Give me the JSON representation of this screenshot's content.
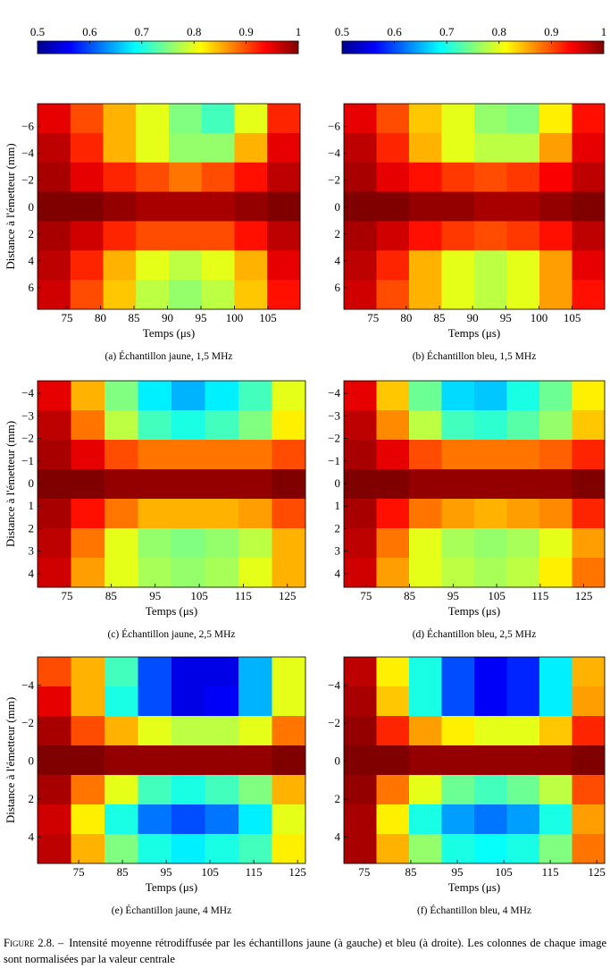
{
  "chart_data": [
    {
      "type": "colorbar",
      "colormap": "jet",
      "xlim": [
        0.5,
        1
      ],
      "xticks": [
        0.5,
        0.6,
        0.7,
        0.8,
        0.9,
        1
      ]
    },
    {
      "type": "colorbar",
      "colormap": "jet",
      "xlim": [
        0.5,
        1
      ],
      "xticks": [
        0.5,
        0.6,
        0.7,
        0.8,
        0.9,
        1
      ]
    },
    {
      "type": "heatmap",
      "xlabel": "Temps (μs)",
      "ylabel": "Distance à l'émetteur (mm)",
      "caption": "(a) Échantillon jaune, 1,5 MHz",
      "xlim": [
        70.6,
        109.8
      ],
      "xticks": [
        75,
        80,
        85,
        90,
        95,
        100,
        105
      ],
      "ylim": [
        -7.7,
        7.6
      ],
      "yticks": [
        {
          "value": -6,
          "label": "−6"
        },
        {
          "value": -4,
          "label": "−4"
        },
        {
          "value": -2,
          "label": "−2"
        },
        0,
        2,
        4,
        6
      ],
      "values": [
        [
          0.95,
          0.9,
          0.85,
          0.8,
          0.75,
          0.72,
          0.8,
          0.92
        ],
        [
          0.97,
          0.92,
          0.85,
          0.8,
          0.76,
          0.76,
          0.85,
          0.95
        ],
        [
          0.98,
          0.95,
          0.92,
          0.9,
          0.88,
          0.9,
          0.93,
          0.97
        ],
        [
          1,
          1,
          0.99,
          0.98,
          0.98,
          0.98,
          0.99,
          1
        ],
        [
          0.98,
          0.96,
          0.92,
          0.9,
          0.9,
          0.9,
          0.93,
          0.97
        ],
        [
          0.97,
          0.92,
          0.85,
          0.8,
          0.78,
          0.8,
          0.85,
          0.95
        ],
        [
          0.96,
          0.9,
          0.84,
          0.78,
          0.76,
          0.78,
          0.84,
          0.93
        ]
      ]
    },
    {
      "type": "heatmap",
      "xlabel": "Temps (μs)",
      "caption": "(b) Échantillon bleu, 1,5 MHz",
      "xlim": [
        70.6,
        109.9
      ],
      "xticks": [
        75,
        80,
        85,
        90,
        95,
        100,
        105
      ],
      "ylim": [
        -7.7,
        7.6
      ],
      "yticks": [
        {
          "value": -6,
          "label": "−6"
        },
        {
          "value": -4,
          "label": "−4"
        },
        {
          "value": -2,
          "label": "−2"
        },
        0,
        2,
        4,
        6
      ],
      "values": [
        [
          0.95,
          0.9,
          0.84,
          0.8,
          0.76,
          0.75,
          0.82,
          0.93
        ],
        [
          0.97,
          0.92,
          0.85,
          0.8,
          0.78,
          0.78,
          0.86,
          0.95
        ],
        [
          0.98,
          0.95,
          0.93,
          0.91,
          0.9,
          0.91,
          0.94,
          0.97
        ],
        [
          1,
          1,
          0.99,
          0.99,
          0.98,
          0.98,
          0.99,
          1
        ],
        [
          0.98,
          0.96,
          0.93,
          0.91,
          0.9,
          0.91,
          0.93,
          0.97
        ],
        [
          0.97,
          0.92,
          0.85,
          0.8,
          0.78,
          0.8,
          0.86,
          0.95
        ],
        [
          0.96,
          0.9,
          0.85,
          0.8,
          0.78,
          0.8,
          0.86,
          0.93
        ]
      ]
    },
    {
      "type": "heatmap",
      "xlabel": "Temps (μs)",
      "ylabel": "Distance à l'émetteur (mm)",
      "caption": "(c) Échantillon jaune, 2,5 MHz",
      "xlim": [
        68.3,
        129.1
      ],
      "xticks": [
        75,
        85,
        95,
        105,
        115,
        125
      ],
      "ylim": [
        -4.56,
        4.6
      ],
      "yticks": [
        {
          "value": -4,
          "label": "−4"
        },
        {
          "value": -3,
          "label": "−3"
        },
        {
          "value": -2,
          "label": "−2"
        },
        {
          "value": -1,
          "label": "−1"
        },
        0,
        1,
        2,
        3,
        4
      ],
      "values": [
        [
          0.95,
          0.85,
          0.75,
          0.68,
          0.65,
          0.68,
          0.72,
          0.8
        ],
        [
          0.97,
          0.88,
          0.78,
          0.72,
          0.7,
          0.72,
          0.75,
          0.82
        ],
        [
          0.98,
          0.95,
          0.9,
          0.88,
          0.88,
          0.88,
          0.88,
          0.9
        ],
        [
          1,
          1,
          0.99,
          0.99,
          0.99,
          0.99,
          0.99,
          1
        ],
        [
          0.98,
          0.93,
          0.88,
          0.85,
          0.85,
          0.85,
          0.86,
          0.9
        ],
        [
          0.97,
          0.88,
          0.8,
          0.76,
          0.75,
          0.76,
          0.78,
          0.85
        ],
        [
          0.96,
          0.86,
          0.8,
          0.77,
          0.76,
          0.77,
          0.8,
          0.85
        ]
      ]
    },
    {
      "type": "heatmap",
      "xlabel": "Temps (μs)",
      "caption": "(d) Échantillon bleu, 2,5 MHz",
      "xlim": [
        69.9,
        129.8
      ],
      "xticks": [
        75,
        85,
        95,
        105,
        115,
        125
      ],
      "ylim": [
        -4.56,
        4.6
      ],
      "yticks": [
        {
          "value": -4,
          "label": "−4"
        },
        {
          "value": -3,
          "label": "−3"
        },
        {
          "value": -2,
          "label": "−2"
        },
        {
          "value": -1,
          "label": "−1"
        },
        0,
        1,
        2,
        3,
        4
      ],
      "values": [
        [
          0.95,
          0.84,
          0.74,
          0.67,
          0.66,
          0.7,
          0.74,
          0.82
        ],
        [
          0.97,
          0.87,
          0.78,
          0.72,
          0.71,
          0.73,
          0.76,
          0.84
        ],
        [
          0.98,
          0.95,
          0.9,
          0.88,
          0.88,
          0.88,
          0.89,
          0.92
        ],
        [
          1,
          1,
          0.99,
          0.99,
          0.99,
          0.99,
          0.99,
          1
        ],
        [
          0.98,
          0.93,
          0.88,
          0.86,
          0.85,
          0.86,
          0.87,
          0.92
        ],
        [
          0.97,
          0.88,
          0.8,
          0.77,
          0.76,
          0.77,
          0.8,
          0.86
        ],
        [
          0.96,
          0.86,
          0.8,
          0.78,
          0.77,
          0.78,
          0.82,
          0.88
        ]
      ]
    },
    {
      "type": "heatmap",
      "xlabel": "Temps (μs)",
      "ylabel": "Distance à l'émetteur (mm)",
      "caption": "(e) Échantillon jaune, 4 MHz",
      "xlim": [
        65.6,
        126.8
      ],
      "xticks": [
        75,
        85,
        95,
        105,
        115,
        125
      ],
      "ylim": [
        -5.5,
        5.4
      ],
      "yticks": [
        {
          "value": -4,
          "label": "−4"
        },
        {
          "value": -2,
          "label": "−2"
        },
        0,
        2,
        4
      ],
      "values": [
        [
          0.9,
          0.85,
          0.72,
          0.6,
          0.55,
          0.55,
          0.65,
          0.8
        ],
        [
          0.95,
          0.85,
          0.7,
          0.6,
          0.55,
          0.56,
          0.65,
          0.8
        ],
        [
          0.98,
          0.9,
          0.85,
          0.8,
          0.78,
          0.78,
          0.8,
          0.88
        ],
        [
          1,
          1,
          0.99,
          0.99,
          0.99,
          0.99,
          0.99,
          1
        ],
        [
          0.98,
          0.88,
          0.8,
          0.72,
          0.7,
          0.72,
          0.75,
          0.85
        ],
        [
          0.96,
          0.82,
          0.7,
          0.62,
          0.6,
          0.62,
          0.68,
          0.8
        ],
        [
          0.97,
          0.85,
          0.75,
          0.7,
          0.68,
          0.7,
          0.72,
          0.82
        ]
      ]
    },
    {
      "type": "heatmap",
      "xlabel": "Temps (μs)",
      "caption": "(f) Échantillon bleu, 4 MHz",
      "xlim": [
        70.6,
        126.7
      ],
      "xticks": [
        75,
        85,
        95,
        105,
        115,
        125
      ],
      "ylim": [
        -5.5,
        5.4
      ],
      "yticks": [
        {
          "value": -4,
          "label": "−4"
        },
        {
          "value": -2,
          "label": "−2"
        },
        0,
        2,
        4
      ],
      "values": [
        [
          0.97,
          0.82,
          0.7,
          0.6,
          0.56,
          0.58,
          0.68,
          0.85
        ],
        [
          0.98,
          0.84,
          0.7,
          0.6,
          0.56,
          0.58,
          0.68,
          0.86
        ],
        [
          0.99,
          0.92,
          0.86,
          0.82,
          0.8,
          0.8,
          0.84,
          0.92
        ],
        [
          1,
          1,
          0.99,
          0.99,
          0.99,
          0.99,
          0.99,
          1
        ],
        [
          0.99,
          0.88,
          0.8,
          0.74,
          0.72,
          0.74,
          0.78,
          0.9
        ],
        [
          0.98,
          0.82,
          0.7,
          0.64,
          0.62,
          0.64,
          0.7,
          0.86
        ],
        [
          0.98,
          0.85,
          0.76,
          0.7,
          0.69,
          0.7,
          0.75,
          0.88
        ]
      ]
    }
  ],
  "figure": {
    "label": "Figure 2.8. –",
    "caption": "Intensité moyenne rétrodiffusée par les échantillons jaune (à gauche) et bleu (à droite). Les colonnes de chaque image sont normalisées par la valeur centrale"
  }
}
